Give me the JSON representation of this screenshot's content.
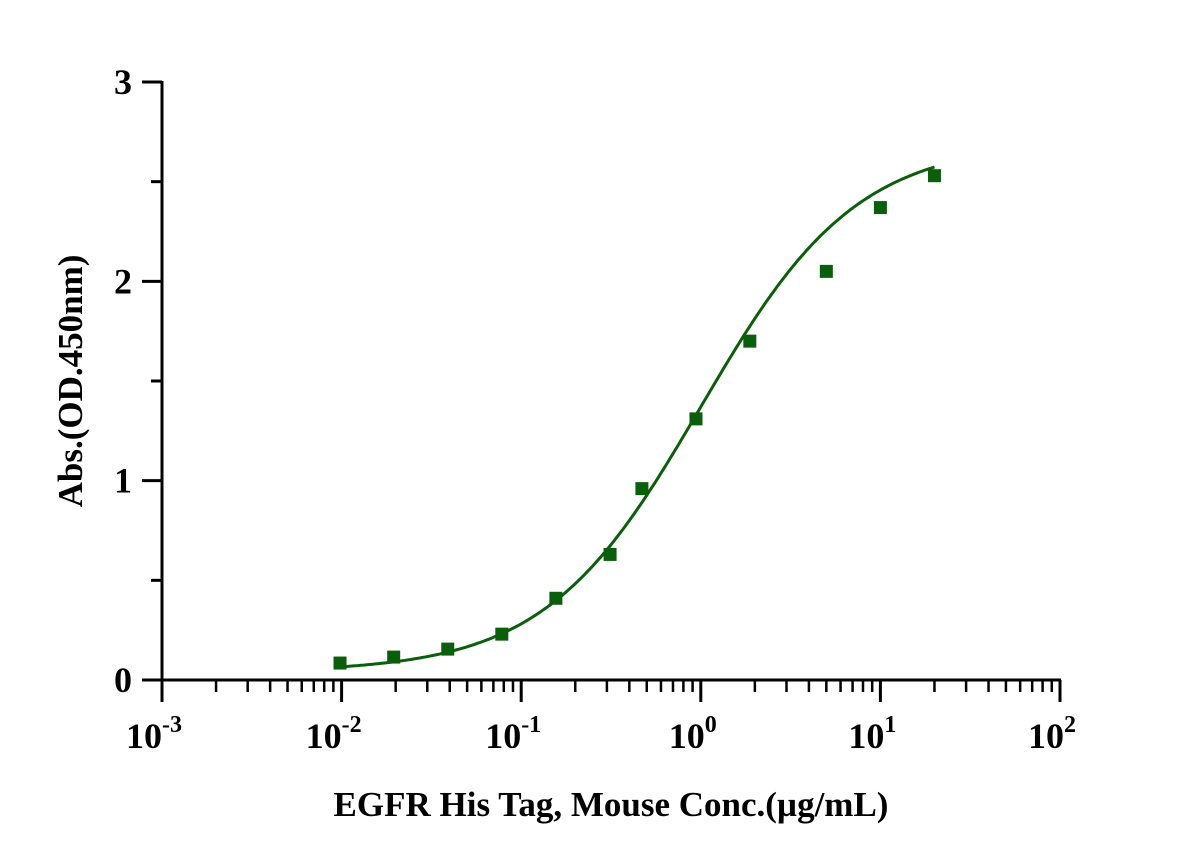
{
  "chart_data": {
    "type": "scatter",
    "title": "",
    "xlabel": "EGFR His Tag, Mouse Conc.(µg/mL)",
    "ylabel": "Abs.(OD.450nm)",
    "xscale": "log",
    "xlim": [
      0.001,
      100
    ],
    "ylim": [
      0,
      3
    ],
    "grid": false,
    "x_ticks": [
      {
        "base": "10",
        "exp": "-3",
        "value": 0.001
      },
      {
        "base": "10",
        "exp": "-2",
        "value": 0.01
      },
      {
        "base": "10",
        "exp": "-1",
        "value": 0.1
      },
      {
        "base": "10",
        "exp": "0",
        "value": 1
      },
      {
        "base": "10",
        "exp": "1",
        "value": 10
      },
      {
        "base": "10",
        "exp": "2",
        "value": 100
      }
    ],
    "y_ticks": [
      "0",
      "1",
      "2",
      "3"
    ],
    "y_minor_ticks": [
      0.5,
      1.5,
      2.5
    ],
    "color": "#0b5e0b",
    "marker": "square",
    "fit_line": true,
    "x": [
      0.0098,
      0.0195,
      0.039,
      0.078,
      0.156,
      0.3125,
      0.47,
      0.94,
      1.875,
      5,
      10,
      20
    ],
    "y": [
      0.085,
      0.115,
      0.155,
      0.23,
      0.41,
      0.63,
      0.96,
      1.31,
      1.7,
      2.05,
      2.37,
      2.53
    ]
  }
}
